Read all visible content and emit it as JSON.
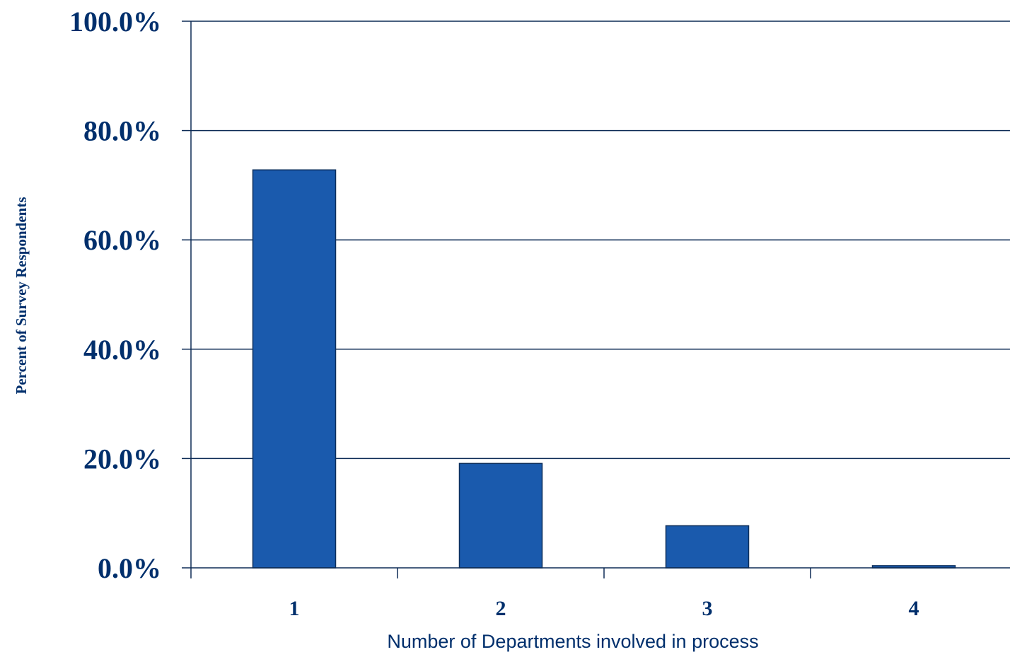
{
  "chart_data": {
    "type": "bar",
    "categories": [
      "1",
      "2",
      "3",
      "4"
    ],
    "values": [
      72.8,
      19.1,
      7.7,
      0.4
    ],
    "ylim": [
      0,
      100
    ],
    "yticks": [
      0,
      20,
      40,
      60,
      80,
      100
    ],
    "ytick_labels": [
      "0.0%",
      "20.0%",
      "40.0%",
      "60.0%",
      "80.0%",
      "100.0%"
    ],
    "xlabel": "Number of Departments involved in process",
    "ylabel": "Percent of Survey Respondents",
    "grid": true,
    "legend": "none"
  },
  "colors": {
    "bar": "#1a5aad",
    "bar_edge": "#0d2f5c",
    "axis": "#0d2b55",
    "text": "#002f6c"
  }
}
